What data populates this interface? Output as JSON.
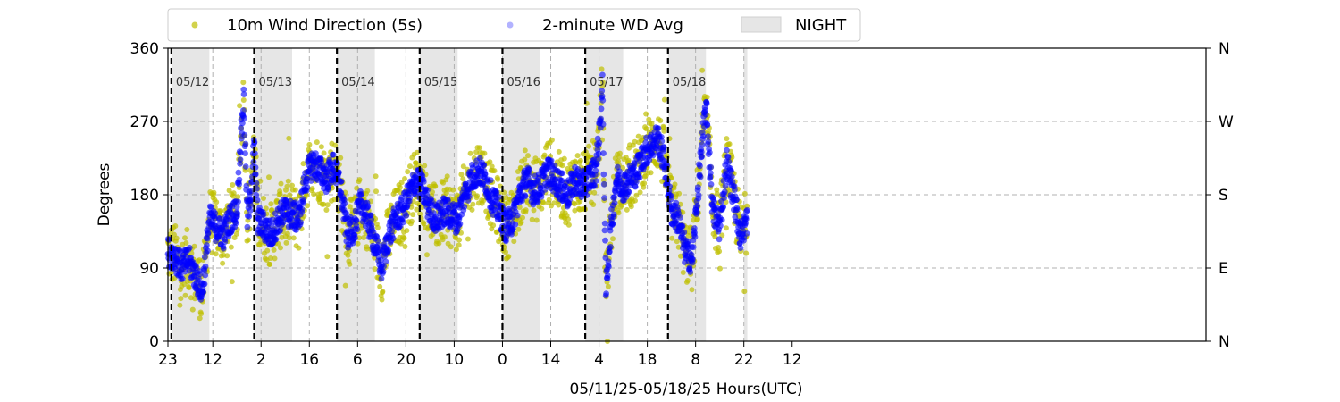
{
  "chart_data": {
    "type": "scatter",
    "xlabel": "05/11/25-05/18/25  Hours(UTC)",
    "ylabel": "Degrees",
    "x_range_hours": [
      0,
      301
    ],
    "ylim": [
      0,
      360
    ],
    "grid": true,
    "legend_position": "top-left, above plot",
    "x_ticks": [
      {
        "hour": 0,
        "label": "23"
      },
      {
        "hour": 13,
        "label": "12"
      },
      {
        "hour": 27,
        "label": "2"
      },
      {
        "hour": 41,
        "label": "16"
      },
      {
        "hour": 55,
        "label": "6"
      },
      {
        "hour": 69,
        "label": "20"
      },
      {
        "hour": 83,
        "label": "10"
      },
      {
        "hour": 97,
        "label": "0"
      },
      {
        "hour": 111,
        "label": "14"
      },
      {
        "hour": 125,
        "label": "4"
      },
      {
        "hour": 139,
        "label": "18"
      },
      {
        "hour": 153,
        "label": "8"
      },
      {
        "hour": 167,
        "label": "22"
      },
      {
        "hour": 181,
        "label": "12"
      }
    ],
    "y_ticks_left": [
      {
        "value": 0,
        "label": "0"
      },
      {
        "value": 90,
        "label": "90"
      },
      {
        "value": 180,
        "label": "180"
      },
      {
        "value": 270,
        "label": "270"
      },
      {
        "value": 360,
        "label": "360"
      }
    ],
    "y_ticks_right": [
      {
        "value": 0,
        "label": "N"
      },
      {
        "value": 90,
        "label": "E"
      },
      {
        "value": 180,
        "label": "S"
      },
      {
        "value": 270,
        "label": "W"
      },
      {
        "value": 360,
        "label": "N"
      }
    ],
    "day_markers": [
      {
        "hour": 1,
        "label": "05/12"
      },
      {
        "hour": 25,
        "label": "05/13"
      },
      {
        "hour": 49,
        "label": "05/14"
      },
      {
        "hour": 73,
        "label": "05/15"
      },
      {
        "hour": 97,
        "label": "05/16"
      },
      {
        "hour": 121,
        "label": "05/17"
      },
      {
        "hour": 145,
        "label": "05/18"
      }
    ],
    "night_periods": [
      [
        1,
        12
      ],
      [
        25,
        36
      ],
      [
        49,
        60
      ],
      [
        73,
        84
      ],
      [
        97,
        108
      ],
      [
        121,
        132
      ],
      [
        145,
        156
      ],
      [
        167,
        168
      ]
    ],
    "series": [
      {
        "name": "10m Wind Direction (5s)",
        "color": "#bfbf00",
        "marker": "circle",
        "hours": [
          0,
          2,
          4,
          6,
          8,
          10,
          12,
          14,
          16,
          18,
          20,
          21,
          22,
          23,
          24,
          25,
          26,
          28,
          30,
          32,
          34,
          36,
          38,
          40,
          42,
          44,
          46,
          48,
          50,
          52,
          54,
          56,
          58,
          60,
          62,
          64,
          66,
          68,
          70,
          72,
          74,
          76,
          78,
          80,
          82,
          84,
          86,
          88,
          90,
          92,
          94,
          96,
          98,
          100,
          102,
          104,
          106,
          108,
          110,
          112,
          114,
          116,
          118,
          120,
          122,
          124,
          125,
          126,
          127,
          128,
          130,
          132,
          134,
          136,
          138,
          140,
          142,
          144,
          146,
          148,
          150,
          152,
          154,
          156,
          158,
          160,
          162,
          164,
          166,
          168
        ],
        "values": [
          110,
          105,
          90,
          100,
          80,
          60,
          150,
          140,
          130,
          150,
          160,
          240,
          300,
          150,
          180,
          240,
          150,
          140,
          130,
          150,
          160,
          155,
          150,
          200,
          220,
          210,
          200,
          215,
          190,
          130,
          140,
          170,
          150,
          120,
          90,
          130,
          150,
          160,
          180,
          200,
          185,
          160,
          150,
          160,
          155,
          150,
          180,
          200,
          210,
          200,
          175,
          160,
          140,
          150,
          180,
          200,
          185,
          190,
          210,
          200,
          190,
          180,
          200,
          190,
          200,
          210,
          250,
          310,
          60,
          120,
          200,
          190,
          200,
          210,
          230,
          240,
          250,
          220,
          160,
          150,
          110,
          100,
          200,
          290,
          160,
          140,
          220,
          180,
          130,
          150
        ],
        "spread": 40
      },
      {
        "name": "2-minute WD Avg",
        "color": "#0000ff",
        "marker": "circle",
        "hours": [
          0,
          2,
          4,
          6,
          8,
          10,
          12,
          14,
          16,
          18,
          20,
          21,
          22,
          23,
          24,
          25,
          26,
          28,
          30,
          32,
          34,
          36,
          38,
          40,
          42,
          44,
          46,
          48,
          50,
          52,
          54,
          56,
          58,
          60,
          62,
          64,
          66,
          68,
          70,
          72,
          74,
          76,
          78,
          80,
          82,
          84,
          86,
          88,
          90,
          92,
          94,
          96,
          98,
          100,
          102,
          104,
          106,
          108,
          110,
          112,
          114,
          116,
          118,
          120,
          122,
          124,
          125,
          126,
          127,
          128,
          130,
          132,
          134,
          136,
          138,
          140,
          142,
          144,
          146,
          148,
          150,
          152,
          154,
          156,
          158,
          160,
          162,
          164,
          166,
          168
        ],
        "values": [
          110,
          105,
          90,
          100,
          80,
          60,
          150,
          140,
          130,
          150,
          160,
          240,
          300,
          150,
          180,
          240,
          150,
          140,
          130,
          150,
          160,
          155,
          150,
          200,
          220,
          210,
          200,
          215,
          190,
          130,
          140,
          170,
          150,
          120,
          90,
          130,
          150,
          160,
          180,
          200,
          185,
          160,
          150,
          160,
          155,
          150,
          180,
          200,
          210,
          200,
          175,
          160,
          140,
          150,
          180,
          200,
          185,
          190,
          210,
          200,
          190,
          180,
          200,
          190,
          200,
          210,
          250,
          310,
          60,
          120,
          200,
          190,
          200,
          210,
          230,
          240,
          250,
          220,
          160,
          150,
          110,
          100,
          200,
          290,
          160,
          140,
          220,
          180,
          130,
          150
        ],
        "spread": 18
      }
    ],
    "legend": {
      "night_label": "NIGHT",
      "night_color": "#e6e6e6"
    }
  }
}
